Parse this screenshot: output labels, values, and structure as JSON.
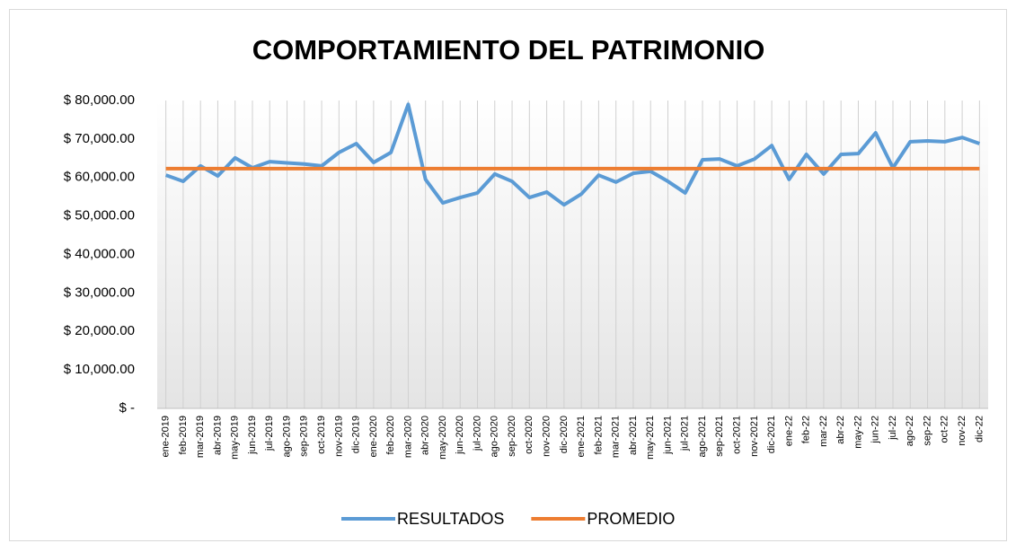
{
  "chart_data": {
    "type": "line",
    "title": "COMPORTAMIENTO DEL PATRIMONIO",
    "categories": [
      "ene-2019",
      "feb-2019",
      "mar-2019",
      "abr-2019",
      "may-2019",
      "jun-2019",
      "jul-2019",
      "ago-2019",
      "sep-2019",
      "oct-2019",
      "nov-2019",
      "dic-2019",
      "ene-2020",
      "feb-2020",
      "mar-2020",
      "abr-2020",
      "may-2020",
      "jun-2020",
      "jul-2020",
      "ago-2020",
      "sep-2020",
      "oct-2020",
      "nov-2020",
      "dic-2020",
      "ene-2021",
      "feb-2021",
      "mar-2021",
      "abr-2021",
      "may-2021",
      "jun-2021",
      "jul-2021",
      "ago-2021",
      "sep-2021",
      "oct-2021",
      "nov-2021",
      "dic-2021",
      "ene-22",
      "feb-22",
      "mar-22",
      "abr-22",
      "may-22",
      "jun-22",
      "jul-22",
      "ago-22",
      "sep-22",
      "oct-22",
      "nov-22",
      "dic-22"
    ],
    "series": [
      {
        "name": "RESULTADOS",
        "color": "#5b9bd5",
        "values": [
          60600,
          59000,
          63000,
          60400,
          65100,
          62500,
          64100,
          63800,
          63500,
          63000,
          66500,
          68800,
          63900,
          66500,
          79000,
          59500,
          53400,
          54800,
          56000,
          60900,
          59000,
          54800,
          56200,
          52900,
          55700,
          60600,
          58800,
          61100,
          61600,
          59000,
          56000,
          64600,
          64800,
          63000,
          64800,
          68300,
          59500,
          66000,
          60900,
          66000,
          66200,
          71600,
          62500,
          69300,
          69500,
          69300,
          70400,
          68800
        ]
      },
      {
        "name": "PROMEDIO",
        "color": "#ed7d31",
        "values": [
          62300,
          62300,
          62300,
          62300,
          62300,
          62300,
          62300,
          62300,
          62300,
          62300,
          62300,
          62300,
          62300,
          62300,
          62300,
          62300,
          62300,
          62300,
          62300,
          62300,
          62300,
          62300,
          62300,
          62300,
          62300,
          62300,
          62300,
          62300,
          62300,
          62300,
          62300,
          62300,
          62300,
          62300,
          62300,
          62300,
          62300,
          62300,
          62300,
          62300,
          62300,
          62300,
          62300,
          62300,
          62300,
          62300,
          62300,
          62300
        ]
      }
    ],
    "ylim": [
      0,
      80000
    ],
    "yticks": [
      {
        "value": 0,
        "label": "$ -"
      },
      {
        "value": 10000,
        "label": "$ 10,000.00"
      },
      {
        "value": 20000,
        "label": "$ 20,000.00"
      },
      {
        "value": 30000,
        "label": "$ 30,000.00"
      },
      {
        "value": 40000,
        "label": "$ 40,000.00"
      },
      {
        "value": 50000,
        "label": "$ 50,000.00"
      },
      {
        "value": 60000,
        "label": "$ 60,000.00"
      },
      {
        "value": 70000,
        "label": "$ 70,000.00"
      },
      {
        "value": 80000,
        "label": "$ 80,000.00"
      }
    ],
    "grid": true,
    "legend": "bottom"
  }
}
